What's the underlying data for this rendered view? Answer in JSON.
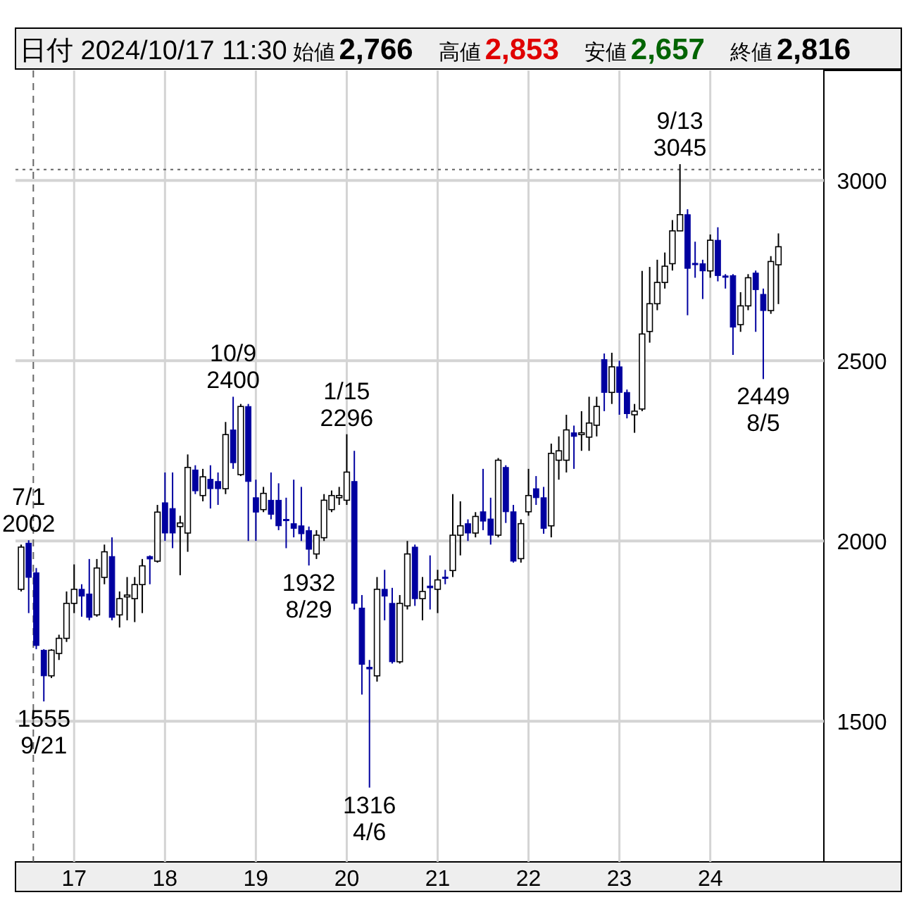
{
  "chart_data": {
    "type": "candlestick",
    "title": "日付 2024/10/17 11:30",
    "annotations": [
      "始値",
      "2,766",
      "高値",
      "2,853",
      "安値",
      "2,657",
      "終値",
      "2,816",
      {
        "text": "7/1\n2002",
        "x": "2016-07",
        "y": 2002
      },
      {
        "text": "1555\n9/21",
        "x": "2016-09",
        "y": 1555
      },
      {
        "text": "10/9\n2400",
        "x": "2018-10",
        "y": 2400
      },
      {
        "text": "1932\n8/29",
        "x": "2019-08",
        "y": 1932
      },
      {
        "text": "1/15\n2296",
        "x": "2020-01",
        "y": 2296
      },
      {
        "text": "1316\n4/6",
        "x": "2020-04",
        "y": 1316
      },
      {
        "text": "9/13\n3045",
        "x": "2023-09",
        "y": 3045
      },
      {
        "text": "2449\n8/5",
        "x": "2024-08",
        "y": 2449
      }
    ],
    "x": [
      "2016-06",
      "2016-07",
      "2016-08",
      "2016-09",
      "2016-10",
      "2016-11",
      "2016-12",
      "2017-01",
      "2017-02",
      "2017-03",
      "2017-04",
      "2017-05",
      "2017-06",
      "2017-07",
      "2017-08",
      "2017-09",
      "2017-10",
      "2017-11",
      "2017-12",
      "2018-01",
      "2018-02",
      "2018-03",
      "2018-04",
      "2018-05",
      "2018-06",
      "2018-07",
      "2018-08",
      "2018-09",
      "2018-10",
      "2018-11",
      "2018-12",
      "2019-01",
      "2019-02",
      "2019-03",
      "2019-04",
      "2019-05",
      "2019-06",
      "2019-07",
      "2019-08",
      "2019-09",
      "2019-10",
      "2019-11",
      "2019-12",
      "2020-01",
      "2020-02",
      "2020-03",
      "2020-04",
      "2020-05",
      "2020-06",
      "2020-07",
      "2020-08",
      "2020-09",
      "2020-10",
      "2020-11",
      "2020-12",
      "2021-01",
      "2021-02",
      "2021-03",
      "2021-04",
      "2021-05",
      "2021-06",
      "2021-07",
      "2021-08",
      "2021-09",
      "2021-10",
      "2021-11",
      "2021-12",
      "2022-01",
      "2022-02",
      "2022-03",
      "2022-04",
      "2022-05",
      "2022-06",
      "2022-07",
      "2022-08",
      "2022-09",
      "2022-10",
      "2022-11",
      "2022-12",
      "2023-01",
      "2023-02",
      "2023-03",
      "2023-04",
      "2023-05",
      "2023-06",
      "2023-07",
      "2023-08",
      "2023-09",
      "2023-10",
      "2023-11",
      "2023-12",
      "2024-01",
      "2024-02",
      "2024-03",
      "2024-04",
      "2024-05",
      "2024-06",
      "2024-07",
      "2024-08",
      "2024-09",
      "2024-10"
    ],
    "ohlc": [
      [
        1866,
        1990,
        1860,
        1983
      ],
      [
        1994,
        2002,
        1800,
        1899
      ],
      [
        1912,
        1925,
        1700,
        1710
      ],
      [
        1697,
        1700,
        1555,
        1626
      ],
      [
        1626,
        1700,
        1620,
        1697
      ],
      [
        1688,
        1740,
        1670,
        1730
      ],
      [
        1730,
        1860,
        1720,
        1827
      ],
      [
        1827,
        1935,
        1800,
        1866
      ],
      [
        1866,
        1880,
        1790,
        1847
      ],
      [
        1853,
        1950,
        1780,
        1788
      ],
      [
        1795,
        1950,
        1790,
        1925
      ],
      [
        1899,
        1990,
        1880,
        1970
      ],
      [
        1957,
        2010,
        1780,
        1788
      ],
      [
        1795,
        1860,
        1760,
        1840
      ],
      [
        1845,
        1900,
        1780,
        1850
      ],
      [
        1840,
        1900,
        1775,
        1879
      ],
      [
        1879,
        1950,
        1800,
        1931
      ],
      [
        1957,
        1960,
        1880,
        1950
      ],
      [
        1944,
        2100,
        1940,
        2080
      ],
      [
        2106,
        2190,
        2000,
        2022
      ],
      [
        2090,
        2190,
        1980,
        2022
      ],
      [
        2040,
        2070,
        1905,
        2050
      ],
      [
        2022,
        2240,
        1970,
        2204
      ],
      [
        2197,
        2210,
        2130,
        2139
      ],
      [
        2126,
        2200,
        2110,
        2178
      ],
      [
        2171,
        2210,
        2090,
        2145
      ],
      [
        2165,
        2190,
        2100,
        2145
      ],
      [
        2145,
        2330,
        2130,
        2295
      ],
      [
        2308,
        2400,
        2200,
        2217
      ],
      [
        2184,
        2380,
        2180,
        2373
      ],
      [
        2373,
        2380,
        2000,
        2165
      ],
      [
        2120,
        2170,
        2000,
        2080
      ],
      [
        2087,
        2150,
        2080,
        2132
      ],
      [
        2113,
        2190,
        2060,
        2074
      ],
      [
        2113,
        2160,
        2030,
        2042
      ],
      [
        2060,
        2120,
        1980,
        2058
      ],
      [
        2048,
        2170,
        2010,
        2035
      ],
      [
        2042,
        2150,
        2000,
        2020
      ],
      [
        2029,
        2040,
        1932,
        1977
      ],
      [
        1964,
        2030,
        1950,
        2016
      ],
      [
        2009,
        2130,
        2000,
        2113
      ],
      [
        2087,
        2140,
        2080,
        2126
      ],
      [
        2120,
        2150,
        2100,
        2126
      ],
      [
        2113,
        2296,
        2100,
        2191
      ],
      [
        2165,
        2250,
        1810,
        1827
      ],
      [
        1814,
        1850,
        1574,
        1658
      ],
      [
        1650,
        1670,
        1316,
        1645
      ],
      [
        1626,
        1900,
        1610,
        1866
      ],
      [
        1866,
        1920,
        1780,
        1847
      ],
      [
        1827,
        1870,
        1660,
        1665
      ],
      [
        1665,
        1850,
        1660,
        1827
      ],
      [
        1820,
        2000,
        1810,
        1964
      ],
      [
        1983,
        1990,
        1820,
        1840
      ],
      [
        1840,
        1900,
        1780,
        1860
      ],
      [
        1875,
        1960,
        1810,
        1870
      ],
      [
        1866,
        1920,
        1800,
        1892
      ],
      [
        1900,
        1920,
        1880,
        1899
      ],
      [
        1918,
        2130,
        1900,
        2016
      ],
      [
        2016,
        2110,
        1960,
        2042
      ],
      [
        2048,
        2060,
        2000,
        2022
      ],
      [
        2022,
        2080,
        2010,
        2068
      ],
      [
        2081,
        2200,
        2030,
        2055
      ],
      [
        2061,
        2120,
        1990,
        2016
      ],
      [
        2016,
        2230,
        2010,
        2224
      ],
      [
        2204,
        2210,
        2050,
        2081
      ],
      [
        2081,
        2100,
        1940,
        1944
      ],
      [
        1951,
        2060,
        1940,
        2048
      ],
      [
        2081,
        2200,
        2070,
        2126
      ],
      [
        2145,
        2180,
        2100,
        2120
      ],
      [
        2120,
        2150,
        2020,
        2035
      ],
      [
        2042,
        2270,
        2010,
        2243
      ],
      [
        2224,
        2290,
        2170,
        2250
      ],
      [
        2224,
        2350,
        2190,
        2308
      ],
      [
        2300,
        2320,
        2200,
        2290
      ],
      [
        2295,
        2360,
        2250,
        2300
      ],
      [
        2288,
        2400,
        2250,
        2327
      ],
      [
        2321,
        2400,
        2290,
        2373
      ],
      [
        2503,
        2520,
        2360,
        2412
      ],
      [
        2412,
        2522,
        2380,
        2483
      ],
      [
        2483,
        2500,
        2350,
        2412
      ],
      [
        2412,
        2420,
        2340,
        2353
      ],
      [
        2350,
        2380,
        2300,
        2360
      ],
      [
        2366,
        2749,
        2360,
        2574
      ],
      [
        2581,
        2760,
        2550,
        2658
      ],
      [
        2658,
        2780,
        2640,
        2717
      ],
      [
        2717,
        2800,
        2700,
        2762
      ],
      [
        2769,
        2890,
        2750,
        2860
      ],
      [
        2860,
        3045,
        2860,
        2905
      ],
      [
        2905,
        2920,
        2626,
        2756
      ],
      [
        2770,
        2830,
        2730,
        2769
      ],
      [
        2769,
        2780,
        2671,
        2749
      ],
      [
        2749,
        2850,
        2730,
        2834
      ],
      [
        2834,
        2870,
        2720,
        2736
      ],
      [
        2735,
        2740,
        2700,
        2733
      ],
      [
        2736,
        2740,
        2516,
        2593
      ],
      [
        2600,
        2690,
        2580,
        2652
      ],
      [
        2652,
        2740,
        2640,
        2730
      ],
      [
        2743,
        2750,
        2580,
        2697
      ],
      [
        2684,
        2700,
        2449,
        2639
      ],
      [
        2639,
        2790,
        2630,
        2775
      ],
      [
        2766,
        2853,
        2657,
        2816
      ]
    ],
    "xlim": [
      "2016-05-09",
      "2025-04-01"
    ],
    "xticks": [
      {
        "value": "2017-01-01",
        "label": "17"
      },
      {
        "value": "2018-01-01",
        "label": "18"
      },
      {
        "value": "2019-01-01",
        "label": "19"
      },
      {
        "value": "2020-01-01",
        "label": "20"
      },
      {
        "value": "2021-01-01",
        "label": "21"
      },
      {
        "value": "2022-01-01",
        "label": "22"
      },
      {
        "value": "2023-01-01",
        "label": "23"
      },
      {
        "value": "2024-01-01",
        "label": "24"
      }
    ],
    "ylim": [
      1110,
      3305
    ],
    "yticks": [
      1500,
      2000,
      2500,
      3000
    ],
    "grid": true,
    "ref_lines": [
      {
        "axis": "y",
        "value": 3030,
        "line_style": "dotted"
      },
      {
        "axis": "x",
        "value": "2016-07-20",
        "line_style": "dashed"
      }
    ]
  }
}
